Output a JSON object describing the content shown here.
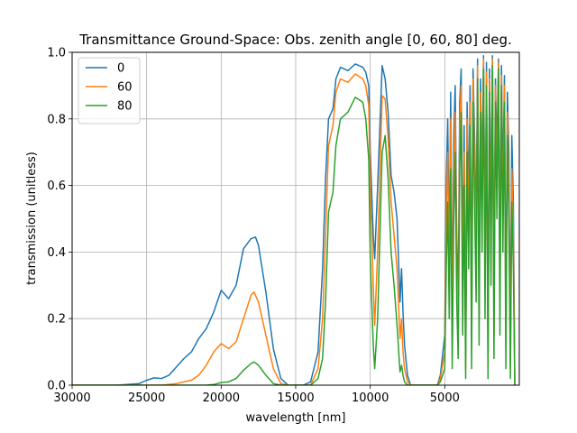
{
  "chart_data": {
    "type": "line",
    "title": "Transmittance Ground-Space: Obs. zenith angle [0, 60, 80] deg.",
    "xlabel": "wavelength [nm]",
    "ylabel": "transmission (unitless)",
    "xlim": [
      30000,
      0
    ],
    "ylim": [
      0,
      1.0
    ],
    "x_reversed": true,
    "grid": true,
    "legend_position": "top-left",
    "xticks": [
      30000,
      25000,
      20000,
      15000,
      10000,
      5000
    ],
    "xtick_labels": [
      "30000",
      "25000",
      "20000",
      "15000",
      "10000",
      "5000"
    ],
    "yticks": [
      0.0,
      0.2,
      0.4,
      0.6,
      0.8,
      1.0
    ],
    "ytick_labels": [
      "0.0",
      "0.2",
      "0.4",
      "0.6",
      "0.8",
      "1.0"
    ],
    "series": [
      {
        "name": "0",
        "color": "#1f77b4",
        "x": [
          30000,
          27000,
          25500,
          25000,
          24500,
          24000,
          23500,
          23000,
          22500,
          22000,
          21500,
          21000,
          20500,
          20000,
          19500,
          19000,
          18500,
          18000,
          17700,
          17500,
          17000,
          16500,
          16000,
          15500,
          15000,
          14500,
          14000,
          13500,
          13200,
          13000,
          12800,
          12500,
          12300,
          12000,
          11500,
          11000,
          10500,
          10300,
          10100,
          10000,
          9800,
          9700,
          9500,
          9200,
          9000,
          8800,
          8600,
          8400,
          8200,
          8000,
          7900,
          7800,
          7700,
          7500,
          7300,
          7000,
          6500,
          6000,
          5500,
          5300,
          5000,
          4900,
          4800,
          4700,
          4600,
          4500,
          4400,
          4300,
          4200,
          4100,
          4000,
          3900,
          3800,
          3700,
          3600,
          3500,
          3400,
          3300,
          3200,
          3100,
          3000,
          2900,
          2800,
          2700,
          2600,
          2500,
          2400,
          2300,
          2200,
          2100,
          2000,
          1900,
          1800,
          1700,
          1600,
          1500,
          1400,
          1300,
          1200,
          1100,
          1000,
          900,
          800,
          700,
          600,
          500,
          400,
          300
        ],
        "y": [
          0,
          0,
          0.005,
          0.015,
          0.022,
          0.02,
          0.03,
          0.055,
          0.08,
          0.1,
          0.14,
          0.17,
          0.22,
          0.285,
          0.26,
          0.3,
          0.41,
          0.44,
          0.445,
          0.42,
          0.28,
          0.11,
          0.02,
          0,
          0,
          0,
          0.01,
          0.1,
          0.35,
          0.62,
          0.8,
          0.83,
          0.92,
          0.955,
          0.945,
          0.965,
          0.955,
          0.94,
          0.9,
          0.7,
          0.45,
          0.38,
          0.6,
          0.96,
          0.92,
          0.82,
          0.63,
          0.58,
          0.5,
          0.25,
          0.35,
          0.22,
          0.12,
          0.03,
          0,
          0,
          0,
          0,
          0,
          0.03,
          0.15,
          0.62,
          0.8,
          0.4,
          0.88,
          0.2,
          0.75,
          0.9,
          0.45,
          0.25,
          0.85,
          0.95,
          0.35,
          0.78,
          0.1,
          0.85,
          0.55,
          0.9,
          0.2,
          0.95,
          0.75,
          0.45,
          0.98,
          0.3,
          0.92,
          0.6,
          0.99,
          0.4,
          0.97,
          0.1,
          0.95,
          0.5,
          0.99,
          0.25,
          0.92,
          0.7,
          0.98,
          0.35,
          0.96,
          0.6,
          0.93,
          0.2,
          0.88,
          0.7,
          0.1,
          0.75,
          0.55,
          0.0
        ]
      },
      {
        "name": "60",
        "color": "#ff7f0e",
        "x": [
          30000,
          25000,
          24000,
          23000,
          22000,
          21500,
          21000,
          20500,
          20000,
          19500,
          19000,
          18500,
          18000,
          17800,
          17500,
          17000,
          16500,
          16000,
          15500,
          15000,
          14500,
          14000,
          13500,
          13200,
          13000,
          12800,
          12500,
          12300,
          12000,
          11500,
          11000,
          10500,
          10300,
          10100,
          10000,
          9800,
          9700,
          9500,
          9200,
          9000,
          8800,
          8600,
          8400,
          8200,
          8000,
          7900,
          7800,
          7700,
          7500,
          7300,
          7000,
          6500,
          6000,
          5500,
          5300,
          5000,
          4900,
          4800,
          4700,
          4600,
          4500,
          4400,
          4300,
          4200,
          4100,
          4000,
          3900,
          3800,
          3700,
          3600,
          3500,
          3400,
          3300,
          3200,
          3100,
          3000,
          2900,
          2800,
          2700,
          2600,
          2500,
          2400,
          2300,
          2200,
          2100,
          2000,
          1900,
          1800,
          1700,
          1600,
          1500,
          1400,
          1300,
          1200,
          1100,
          1000,
          900,
          800,
          700,
          600,
          500,
          400,
          300
        ],
        "y": [
          0,
          0,
          0.0,
          0.005,
          0.015,
          0.03,
          0.06,
          0.1,
          0.125,
          0.11,
          0.13,
          0.2,
          0.27,
          0.28,
          0.25,
          0.15,
          0.05,
          0.005,
          0,
          0,
          0,
          0,
          0.05,
          0.2,
          0.45,
          0.72,
          0.78,
          0.88,
          0.92,
          0.91,
          0.935,
          0.92,
          0.9,
          0.84,
          0.6,
          0.3,
          0.18,
          0.4,
          0.87,
          0.86,
          0.74,
          0.55,
          0.45,
          0.35,
          0.14,
          0.2,
          0.1,
          0.05,
          0.01,
          0,
          0,
          0,
          0,
          0,
          0.02,
          0.1,
          0.5,
          0.7,
          0.3,
          0.8,
          0.12,
          0.65,
          0.82,
          0.35,
          0.15,
          0.78,
          0.9,
          0.25,
          0.7,
          0.05,
          0.8,
          0.45,
          0.85,
          0.12,
          0.92,
          0.65,
          0.35,
          0.96,
          0.2,
          0.88,
          0.5,
          0.98,
          0.3,
          0.94,
          0.05,
          0.92,
          0.4,
          0.98,
          0.15,
          0.9,
          0.6,
          0.97,
          0.25,
          0.93,
          0.5,
          0.9,
          0.12,
          0.82,
          0.6,
          0.05,
          0.65,
          0.45,
          0.0
        ]
      },
      {
        "name": "80",
        "color": "#2ca02c",
        "x": [
          30000,
          22000,
          21000,
          20500,
          20000,
          19500,
          19000,
          18500,
          18000,
          17800,
          17500,
          17000,
          16500,
          16000,
          15000,
          14000,
          13500,
          13200,
          13000,
          12800,
          12500,
          12300,
          12000,
          11500,
          11000,
          10500,
          10300,
          10100,
          10000,
          9800,
          9700,
          9500,
          9200,
          9000,
          8800,
          8600,
          8400,
          8200,
          8000,
          7900,
          7800,
          7700,
          7500,
          7300,
          7000,
          6500,
          6000,
          5500,
          5300,
          5000,
          4900,
          4800,
          4700,
          4600,
          4500,
          4400,
          4300,
          4200,
          4100,
          4000,
          3900,
          3800,
          3700,
          3600,
          3500,
          3400,
          3300,
          3200,
          3100,
          3000,
          2900,
          2800,
          2700,
          2600,
          2500,
          2400,
          2300,
          2200,
          2100,
          2000,
          1900,
          1800,
          1700,
          1600,
          1500,
          1400,
          1300,
          1200,
          1100,
          1000,
          900,
          800,
          700,
          600,
          500,
          400,
          300
        ],
        "y": [
          0,
          0,
          0.0,
          0.002,
          0.008,
          0.01,
          0.02,
          0.045,
          0.065,
          0.07,
          0.06,
          0.03,
          0.005,
          0,
          0,
          0,
          0.02,
          0.08,
          0.25,
          0.52,
          0.58,
          0.72,
          0.8,
          0.82,
          0.865,
          0.85,
          0.8,
          0.68,
          0.38,
          0.12,
          0.05,
          0.2,
          0.7,
          0.75,
          0.62,
          0.4,
          0.3,
          0.18,
          0.04,
          0.06,
          0.03,
          0.01,
          0,
          0,
          0,
          0,
          0,
          0,
          0.01,
          0.05,
          0.35,
          0.55,
          0.2,
          0.65,
          0.05,
          0.5,
          0.7,
          0.25,
          0.08,
          0.65,
          0.82,
          0.15,
          0.6,
          0.02,
          0.7,
          0.35,
          0.78,
          0.05,
          0.85,
          0.55,
          0.25,
          0.92,
          0.12,
          0.82,
          0.4,
          0.95,
          0.2,
          0.9,
          0.02,
          0.88,
          0.3,
          0.96,
          0.08,
          0.85,
          0.5,
          0.95,
          0.15,
          0.9,
          0.4,
          0.85,
          0.05,
          0.75,
          0.5,
          0.02,
          0.55,
          0.35,
          0.0
        ]
      }
    ]
  }
}
